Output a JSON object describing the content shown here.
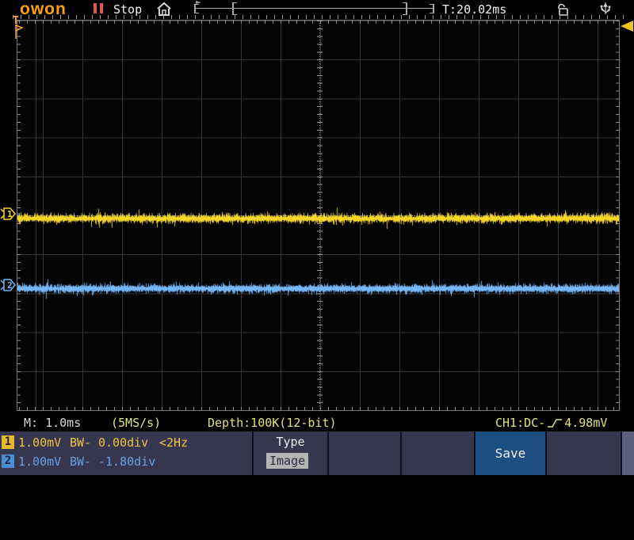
{
  "topbar": {
    "brand": "owon",
    "run_state": "Stop",
    "trigger_time": "T:20.02ms"
  },
  "status": {
    "timebase": "M: 1.0ms",
    "sample_rate": "(5MS/s)",
    "depth": "Depth:100K(12-bit)",
    "trigger_source": "CH1:DC-",
    "trigger_level": "4.98mV"
  },
  "channels": [
    {
      "badge": "1",
      "scale": "1.00mV",
      "bw": "BW-",
      "offset": "0.00div",
      "freq": "<2Hz",
      "color": "#f7d727",
      "offset_div": 0.0
    },
    {
      "badge": "2",
      "scale": "1.00mV",
      "bw": "BW-",
      "offset": "-1.80div",
      "freq": "",
      "color": "#76b7f8",
      "offset_div": -1.8
    }
  ],
  "trigger": {
    "flag_label": "T"
  },
  "menu": {
    "type_label": "Type",
    "type_value": "Image",
    "save_label": "Save"
  },
  "colors": {
    "accent_orange": "#ffa200",
    "status_yellow": "#e3e37b",
    "menu_bg": "#36364e",
    "save_bg": "#1e4d82",
    "trace_ch1": "#f7d727",
    "trace_ch2": "#76b7f8"
  }
}
